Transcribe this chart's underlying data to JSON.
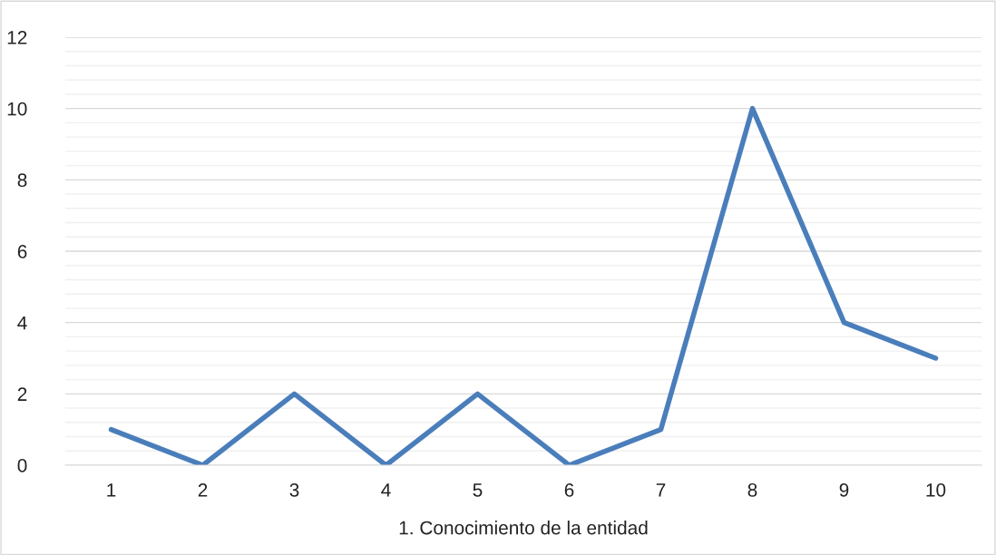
{
  "chart_data": {
    "type": "line",
    "xlabel": "1. Conocimiento de la entidad",
    "categories": [
      "1",
      "2",
      "3",
      "4",
      "5",
      "6",
      "7",
      "8",
      "9",
      "10"
    ],
    "series": [
      {
        "color": "#4a7ebb",
        "values": [
          1,
          0,
          2,
          0,
          2,
          0,
          1,
          10,
          4,
          3
        ]
      }
    ],
    "ylim": [
      0,
      12
    ],
    "yticks": [
      0,
      {
        "value": 0.4,
        "label": null
      },
      {
        "value": 0.8,
        "label": null
      },
      {
        "value": 1.2,
        "label": null
      },
      {
        "value": 1.6,
        "label": null
      },
      2,
      {
        "value": 2.4,
        "label": null
      },
      {
        "value": 2.8,
        "label": null
      },
      {
        "value": 3.2,
        "label": null
      },
      {
        "value": 3.6,
        "label": null
      },
      4,
      {
        "value": 4.4,
        "label": null
      },
      {
        "value": 4.8,
        "label": null
      },
      {
        "value": 5.2,
        "label": null
      },
      {
        "value": 5.6,
        "label": null
      },
      6,
      {
        "value": 6.4,
        "label": null
      },
      {
        "value": 6.8,
        "label": null
      },
      {
        "value": 7.2,
        "label": null
      },
      {
        "value": 7.6,
        "label": null
      },
      8,
      {
        "value": 8.4,
        "label": null
      },
      {
        "value": 8.8,
        "label": null
      },
      {
        "value": 9.2,
        "label": null
      },
      {
        "value": 9.6,
        "label": null
      },
      10,
      {
        "value": 10.4,
        "label": null
      },
      {
        "value": 10.8,
        "label": null
      },
      {
        "value": 11.2,
        "label": null
      },
      {
        "value": 11.6,
        "label": null
      },
      12
    ],
    "grid": "y",
    "line_style": "solid"
  }
}
